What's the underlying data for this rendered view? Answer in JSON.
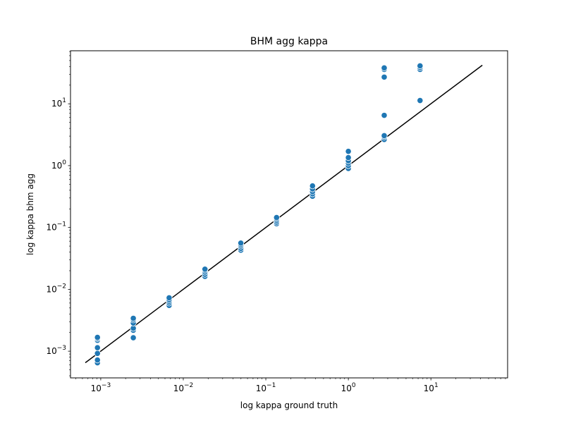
{
  "chart_data": {
    "type": "scatter",
    "title": "BHM agg kappa",
    "xlabel": "log kappa ground truth",
    "ylabel": "log kappa bhm agg",
    "xscale": "log",
    "yscale": "log",
    "xlim": [
      0.00043,
      85
    ],
    "ylim": [
      0.00037,
      72
    ],
    "x_ticks": [
      {
        "base": "10",
        "exp": "−3",
        "value": 0.001
      },
      {
        "base": "10",
        "exp": "−2",
        "value": 0.01
      },
      {
        "base": "10",
        "exp": "−1",
        "value": 0.1
      },
      {
        "base": "10",
        "exp": "0",
        "value": 1
      },
      {
        "base": "10",
        "exp": "1",
        "value": 10
      }
    ],
    "y_ticks": [
      {
        "base": "10",
        "exp": "−3",
        "value": 0.001
      },
      {
        "base": "10",
        "exp": "−2",
        "value": 0.01
      },
      {
        "base": "10",
        "exp": "−1",
        "value": 0.1
      },
      {
        "base": "10",
        "exp": "0",
        "value": 1
      },
      {
        "base": "10",
        "exp": "1",
        "value": 10
      }
    ],
    "grid": false,
    "point_color": "#1f77b4",
    "line_color": "#000000",
    "series": [
      {
        "kind": "scatter",
        "points": [
          [
            0.000912,
            0.00065
          ],
          [
            0.000912,
            0.00072
          ],
          [
            0.000912,
            0.00092
          ],
          [
            0.000912,
            0.00114
          ],
          [
            0.000912,
            0.0015
          ],
          [
            0.000912,
            0.0016
          ],
          [
            0.000912,
            0.00167
          ],
          [
            0.00248,
            0.00165
          ],
          [
            0.00248,
            0.00218
          ],
          [
            0.00248,
            0.00235
          ],
          [
            0.00248,
            0.00285
          ],
          [
            0.00248,
            0.0032
          ],
          [
            0.00248,
            0.0034
          ],
          [
            0.00674,
            0.0055
          ],
          [
            0.00674,
            0.006
          ],
          [
            0.00674,
            0.0064
          ],
          [
            0.00674,
            0.0068
          ],
          [
            0.00674,
            0.0073
          ],
          [
            0.0183,
            0.0162
          ],
          [
            0.0183,
            0.0175
          ],
          [
            0.0183,
            0.019
          ],
          [
            0.0183,
            0.0203
          ],
          [
            0.0183,
            0.0212
          ],
          [
            0.0498,
            0.043
          ],
          [
            0.0498,
            0.046
          ],
          [
            0.0498,
            0.05
          ],
          [
            0.0498,
            0.053
          ],
          [
            0.0498,
            0.056
          ],
          [
            0.135,
            0.115
          ],
          [
            0.135,
            0.122
          ],
          [
            0.135,
            0.13
          ],
          [
            0.135,
            0.138
          ],
          [
            0.135,
            0.145
          ],
          [
            0.368,
            0.32
          ],
          [
            0.368,
            0.35
          ],
          [
            0.368,
            0.38
          ],
          [
            0.368,
            0.42
          ],
          [
            0.368,
            0.47
          ],
          [
            1.0,
            0.9
          ],
          [
            1.0,
            1.0
          ],
          [
            1.0,
            1.1
          ],
          [
            1.0,
            1.2
          ],
          [
            1.0,
            1.35
          ],
          [
            1.0,
            1.7
          ],
          [
            2.72,
            2.65
          ],
          [
            2.72,
            2.9
          ],
          [
            2.72,
            3.05
          ],
          [
            2.72,
            6.5
          ],
          [
            2.72,
            27.0
          ],
          [
            2.72,
            36.0
          ],
          [
            2.72,
            38.0
          ],
          [
            7.39,
            11.3
          ],
          [
            7.39,
            36.0
          ],
          [
            7.39,
            38.5
          ],
          [
            7.39,
            41.0
          ]
        ]
      },
      {
        "kind": "line",
        "points": [
          [
            0.00065,
            0.00065
          ],
          [
            42.0,
            42.0
          ]
        ]
      }
    ]
  }
}
